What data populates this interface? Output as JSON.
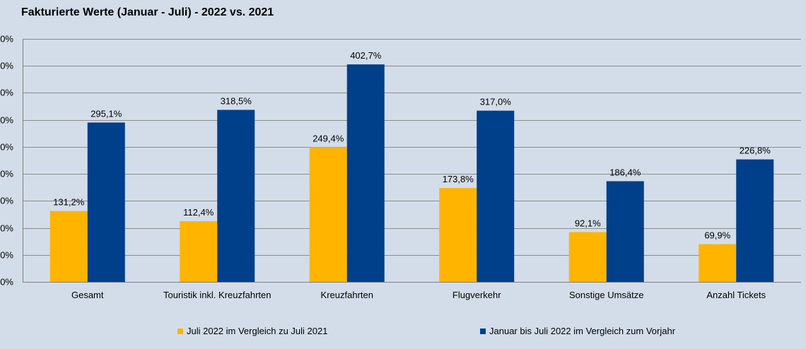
{
  "chart_data": {
    "type": "bar",
    "title": "Fakturierte Werte (Januar - Juli) - 2022 vs. 2021",
    "categories": [
      "Gesamt",
      "Touristik inkl. Kreuzfahrten",
      "Kreuzfahrten",
      "Flugverkehr",
      "Sonstige Umsätze",
      "Anzahl Tickets"
    ],
    "series": [
      {
        "name": "Juli 2022 im Vergleich zu Juli 2021",
        "color": "#ffb400",
        "values": [
          131.2,
          112.4,
          249.4,
          173.8,
          92.1,
          69.9
        ],
        "labels": [
          "131,2%",
          "112,4%",
          "249,4%",
          "173,8%",
          "92,1%",
          "69,9%"
        ]
      },
      {
        "name": "Januar bis Juli 2022 im Vergleich zum Vorjahr",
        "color": "#003f8a",
        "values": [
          295.1,
          318.5,
          402.7,
          317.0,
          186.4,
          226.8
        ],
        "labels": [
          "295,1%",
          "318,5%",
          "402,7%",
          "317,0%",
          "186,4%",
          "226,8%"
        ]
      }
    ],
    "yticks": [
      "0%",
      "0%",
      "0%",
      "0%",
      "0%",
      "0%",
      "0%",
      "0%",
      "0%",
      "0%"
    ],
    "ylim": [
      0,
      450
    ],
    "xlabel": "",
    "ylabel": "",
    "grid": true,
    "legend_position": "bottom"
  }
}
